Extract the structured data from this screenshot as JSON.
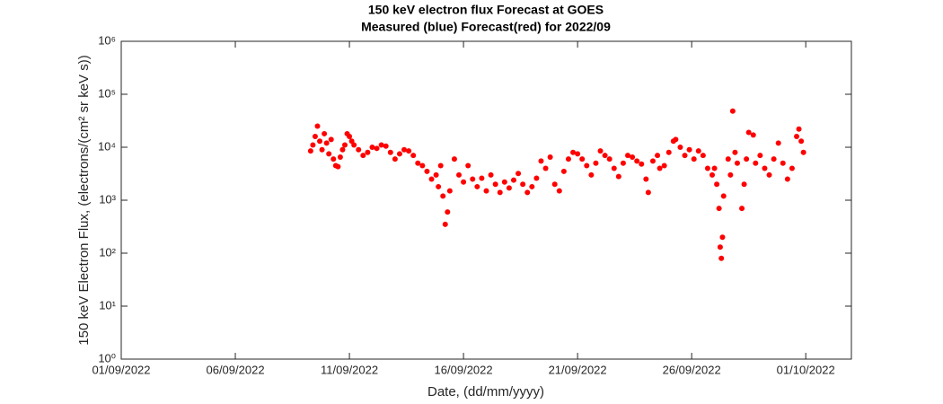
{
  "chart_data": {
    "type": "scatter",
    "title": "150 keV electron flux Forecast at GOES",
    "subtitle": "Measured (blue) Forecast(red) for 2022/09",
    "x_label": "Date, (dd/mm/yyyy)",
    "y_label": "150 keV Electron Flux, (electrons/(cm² sr keV s))",
    "color": "#ff0000",
    "log_y": true,
    "xlim": [
      0,
      32
    ],
    "xticks": [
      {
        "value": 0,
        "label": "01/09/2022"
      },
      {
        "value": 5,
        "label": "06/09/2022"
      },
      {
        "value": 10,
        "label": "11/09/2022"
      },
      {
        "value": 15,
        "label": "16/09/2022"
      },
      {
        "value": 20,
        "label": "21/09/2022"
      },
      {
        "value": 25,
        "label": "26/09/2022"
      },
      {
        "value": 30,
        "label": "01/10/2022"
      }
    ],
    "ylim": [
      1,
      1000000
    ],
    "yticks": [
      {
        "value": 1,
        "label": "10⁰"
      },
      {
        "value": 10,
        "label": "10¹"
      },
      {
        "value": 100,
        "label": "10²"
      },
      {
        "value": 1000,
        "label": "10³"
      },
      {
        "value": 10000,
        "label": "10⁴"
      },
      {
        "value": 100000,
        "label": "10⁵"
      },
      {
        "value": 1000000,
        "label": "10⁶"
      }
    ],
    "x": [
      8.3,
      8.4,
      8.5,
      8.6,
      8.7,
      8.8,
      8.9,
      9.0,
      9.1,
      9.2,
      9.3,
      9.4,
      9.5,
      9.6,
      9.7,
      9.8,
      9.9,
      10.0,
      10.1,
      10.2,
      10.4,
      10.6,
      10.8,
      11.0,
      11.2,
      11.4,
      11.6,
      11.8,
      12.0,
      12.2,
      12.4,
      12.6,
      12.8,
      13.0,
      13.2,
      13.4,
      13.6,
      13.8,
      13.9,
      14.0,
      14.1,
      14.2,
      14.3,
      14.4,
      14.6,
      14.8,
      15.0,
      15.2,
      15.4,
      15.6,
      15.8,
      16.0,
      16.2,
      16.4,
      16.6,
      16.8,
      17.0,
      17.2,
      17.4,
      17.6,
      17.8,
      18.0,
      18.2,
      18.4,
      18.6,
      18.8,
      19.0,
      19.2,
      19.4,
      19.6,
      19.8,
      20.0,
      20.2,
      20.4,
      20.6,
      20.8,
      21.0,
      21.2,
      21.4,
      21.6,
      21.8,
      22.0,
      22.2,
      22.4,
      22.6,
      22.8,
      23.0,
      23.1,
      23.3,
      23.5,
      23.6,
      23.8,
      24.0,
      24.2,
      24.3,
      24.5,
      24.7,
      24.9,
      25.1,
      25.3,
      25.5,
      25.7,
      25.9,
      26.0,
      26.1,
      26.2,
      26.25,
      26.3,
      26.35,
      26.4,
      26.6,
      26.7,
      26.8,
      26.9,
      27.0,
      27.2,
      27.3,
      27.4,
      27.5,
      27.7,
      27.8,
      28.0,
      28.2,
      28.4,
      28.6,
      28.8,
      29.0,
      29.2,
      29.4,
      29.6,
      29.7,
      29.8,
      29.9
    ],
    "values": [
      8500,
      11000,
      16000,
      25000,
      13000,
      9000,
      18000,
      12000,
      7500,
      14000,
      6000,
      4500,
      4300,
      6500,
      9000,
      11000,
      18000,
      16000,
      13000,
      11000,
      9000,
      7000,
      8000,
      10000,
      9500,
      11000,
      10500,
      8000,
      6000,
      7500,
      9000,
      8500,
      7000,
      5000,
      4500,
      3500,
      2500,
      3000,
      1800,
      4500,
      1200,
      350,
      600,
      1500,
      6000,
      3000,
      2200,
      4500,
      2500,
      1800,
      2600,
      1500,
      3000,
      2000,
      1400,
      2200,
      1700,
      2400,
      3200,
      2000,
      1400,
      1800,
      2600,
      5500,
      4000,
      6500,
      2000,
      1500,
      3500,
      6000,
      8000,
      7500,
      6000,
      4500,
      3000,
      5000,
      8500,
      7000,
      6000,
      4000,
      2800,
      5000,
      7000,
      6500,
      5500,
      4800,
      2500,
      1400,
      5500,
      7000,
      4000,
      4500,
      8000,
      13000,
      14000,
      10000,
      7000,
      9000,
      6000,
      8500,
      7000,
      4000,
      3000,
      4000,
      2000,
      700,
      130,
      80,
      200,
      1200,
      6000,
      3000,
      48000,
      8000,
      5000,
      700,
      2000,
      6000,
      19000,
      17000,
      5000,
      7000,
      4000,
      3000,
      6000,
      12000,
      5000,
      2500,
      4000,
      16000,
      22000,
      13000,
      8000
    ]
  }
}
